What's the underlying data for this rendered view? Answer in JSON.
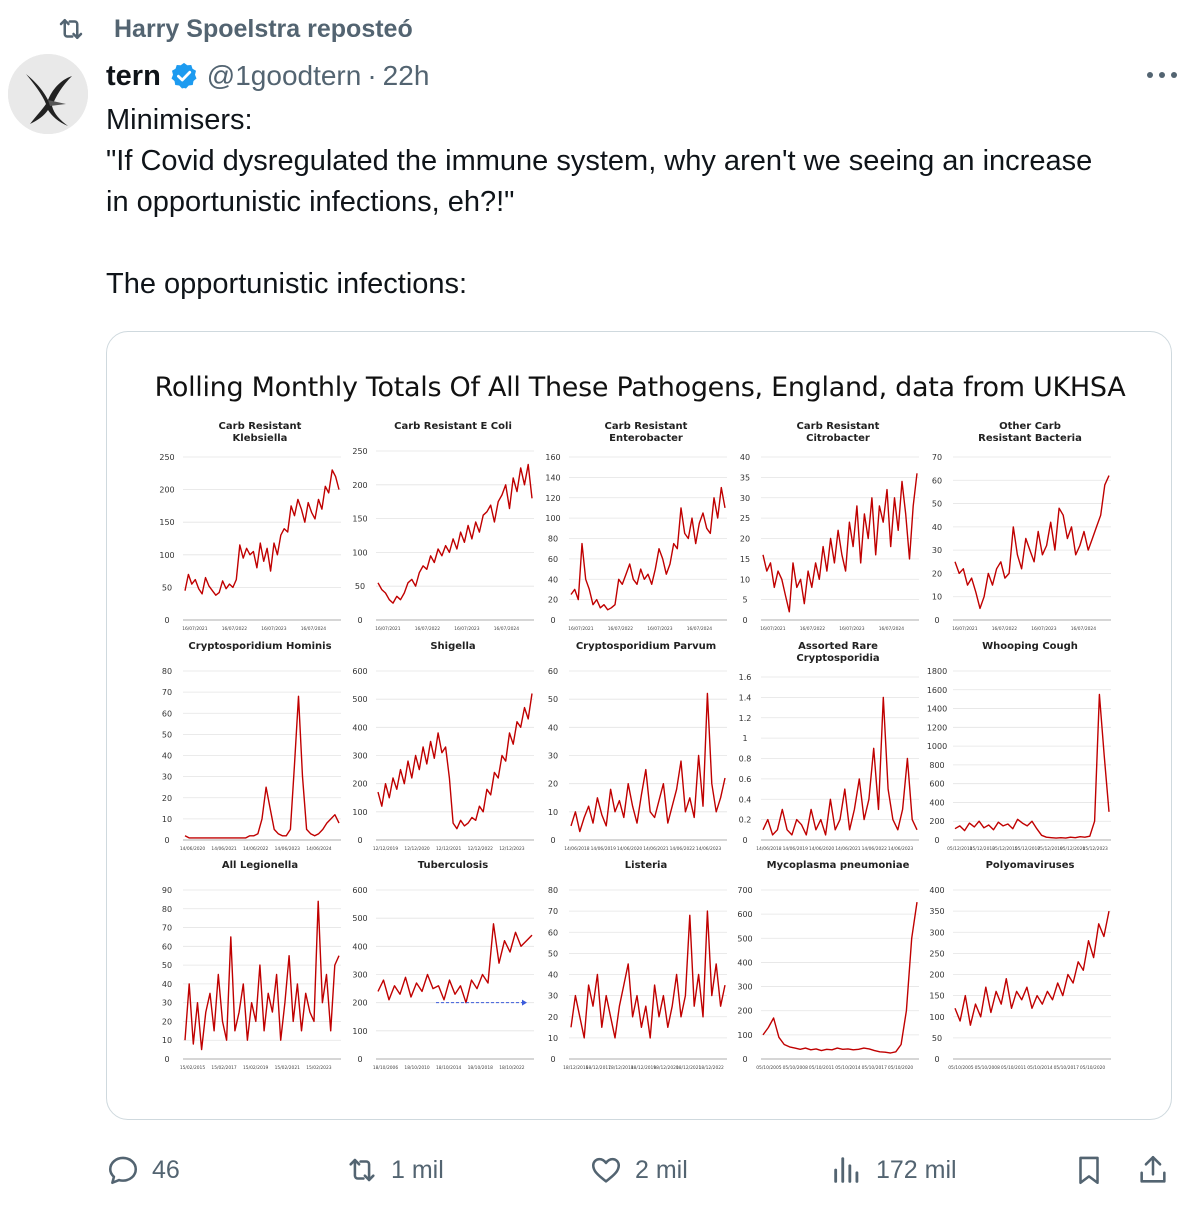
{
  "repost": {
    "text": "Harry Spoelstra reposteó"
  },
  "author": {
    "name": "tern",
    "handle": "@1goodtern",
    "separator": "·",
    "time": "22h"
  },
  "tweet": {
    "lines": [
      "Minimisers:",
      "\"If Covid dysregulated the immune system, why aren't we seeing an increase",
      "in opportunistic infections, eh?!\"",
      "",
      "The opportunistic infections:"
    ]
  },
  "actions": {
    "replies": "46",
    "reposts": "1 mil",
    "likes": "2 mil",
    "views": "172 mil"
  },
  "icons": {
    "repost": "repost-icon",
    "verified": "verified-badge-icon",
    "more": "more-options-icon",
    "reply": "reply-icon",
    "like": "heart-icon",
    "views": "views-icon",
    "bookmark": "bookmark-icon",
    "share": "share-icon"
  },
  "colors": {
    "line": "#c00000",
    "muted": "#536471",
    "verified": "#1d9bf0"
  },
  "chart_data": {
    "title": "Rolling Monthly Totals Of All These Pathogens, England, data from UKHSA",
    "charts": [
      {
        "title": "Carb Resistant Klebsiella",
        "type": "line",
        "ylim": [
          0,
          250
        ],
        "yticks": [
          "0",
          "50",
          "100",
          "150",
          "200",
          "250"
        ],
        "xticks": [
          "16/07/2021",
          "16/07/2022",
          "16/07/2023",
          "16/07/2024"
        ],
        "values": [
          45,
          70,
          55,
          62,
          48,
          40,
          65,
          52,
          45,
          38,
          42,
          60,
          48,
          55,
          50,
          62,
          115,
          95,
          110,
          100,
          105,
          80,
          118,
          90,
          110,
          75,
          118,
          100,
          130,
          140,
          135,
          175,
          160,
          185,
          170,
          150,
          180,
          165,
          155,
          185,
          170,
          205,
          195,
          230,
          220,
          200
        ]
      },
      {
        "title": "Carb Resistant E Coli",
        "type": "line",
        "ylim": [
          0,
          250
        ],
        "yticks": [
          "0",
          "50",
          "100",
          "150",
          "200",
          "250"
        ],
        "xticks": [
          "16/07/2021",
          "16/07/2022",
          "16/07/2023",
          "16/07/2024"
        ],
        "values": [
          55,
          45,
          40,
          30,
          25,
          35,
          30,
          40,
          55,
          60,
          50,
          70,
          80,
          75,
          95,
          85,
          105,
          95,
          110,
          100,
          120,
          105,
          130,
          115,
          140,
          120,
          145,
          130,
          155,
          160,
          170,
          145,
          175,
          185,
          200,
          165,
          210,
          190,
          225,
          200,
          230,
          180
        ]
      },
      {
        "title": "Carb Resistant Enterobacter",
        "type": "line",
        "ylim": [
          0,
          160
        ],
        "yticks": [
          "0",
          "20",
          "40",
          "60",
          "80",
          "100",
          "120",
          "140",
          "160"
        ],
        "xticks": [
          "16/07/2021",
          "16/07/2022",
          "16/07/2023",
          "16/07/2024"
        ],
        "values": [
          25,
          30,
          20,
          75,
          40,
          30,
          15,
          20,
          12,
          15,
          10,
          12,
          15,
          40,
          35,
          45,
          55,
          40,
          35,
          50,
          40,
          45,
          35,
          50,
          70,
          60,
          45,
          55,
          75,
          70,
          110,
          85,
          80,
          100,
          75,
          95,
          105,
          90,
          85,
          120,
          100,
          130,
          110
        ]
      },
      {
        "title": "Carb Resistant Citrobacter",
        "type": "line",
        "ylim": [
          0,
          40
        ],
        "yticks": [
          "0",
          "5",
          "10",
          "15",
          "20",
          "25",
          "30",
          "35",
          "40"
        ],
        "xticks": [
          "16/07/2021",
          "16/07/2022",
          "16/07/2023",
          "16/07/2024"
        ],
        "values": [
          16,
          12,
          14,
          8,
          12,
          10,
          6,
          2,
          14,
          8,
          10,
          4,
          12,
          8,
          14,
          10,
          18,
          12,
          20,
          14,
          22,
          16,
          12,
          24,
          18,
          28,
          14,
          26,
          20,
          30,
          16,
          28,
          24,
          32,
          18,
          30,
          22,
          34,
          26,
          15,
          28,
          36
        ]
      },
      {
        "title": "Other Carb Resistant Bacteria",
        "type": "line",
        "ylim": [
          0,
          70
        ],
        "yticks": [
          "0",
          "10",
          "20",
          "30",
          "40",
          "50",
          "60",
          "70"
        ],
        "xticks": [
          "16/07/2021",
          "16/07/2022",
          "16/07/2023",
          "16/07/2024"
        ],
        "values": [
          25,
          20,
          22,
          15,
          18,
          12,
          5,
          10,
          20,
          15,
          22,
          25,
          18,
          20,
          40,
          28,
          22,
          35,
          30,
          25,
          38,
          28,
          32,
          42,
          30,
          48,
          45,
          35,
          40,
          28,
          32,
          38,
          30,
          35,
          40,
          45,
          58,
          62
        ]
      },
      {
        "title": "Cryptosporidium Hominis",
        "type": "line",
        "ylim": [
          0,
          80
        ],
        "yticks": [
          "0",
          "10",
          "20",
          "30",
          "40",
          "50",
          "60",
          "70",
          "80"
        ],
        "xticks": [
          "14/06/2020",
          "14/06/2021",
          "14/06/2022",
          "14/06/2023",
          "14/06/2024"
        ],
        "values": [
          2,
          1,
          1,
          1,
          1,
          1,
          1,
          1,
          1,
          1,
          1,
          1,
          1,
          1,
          1,
          1,
          2,
          2,
          3,
          10,
          25,
          15,
          5,
          3,
          2,
          2,
          5,
          35,
          68,
          30,
          5,
          3,
          2,
          3,
          5,
          8,
          10,
          12,
          8
        ]
      },
      {
        "title": "Shigella",
        "type": "line",
        "ylim": [
          0,
          600
        ],
        "yticks": [
          "0",
          "100",
          "200",
          "300",
          "400",
          "500",
          "600"
        ],
        "xticks": [
          "12/12/2019",
          "12/12/2020",
          "12/12/2021",
          "12/12/2022",
          "12/12/2023"
        ],
        "values": [
          170,
          120,
          200,
          150,
          220,
          180,
          250,
          200,
          280,
          220,
          300,
          250,
          330,
          270,
          350,
          290,
          380,
          310,
          330,
          220,
          60,
          40,
          70,
          50,
          60,
          80,
          70,
          120,
          100,
          180,
          160,
          240,
          220,
          300,
          280,
          380,
          340,
          420,
          400,
          470,
          430,
          520
        ]
      },
      {
        "title": "Cryptosporidium Parvum",
        "type": "line",
        "ylim": [
          0,
          60
        ],
        "yticks": [
          "0",
          "10",
          "20",
          "30",
          "40",
          "50",
          "60"
        ],
        "xticks": [
          "14/06/2018",
          "14/06/2019",
          "14/06/2020",
          "14/06/2021",
          "14/06/2022",
          "14/06/2023"
        ],
        "values": [
          5,
          10,
          3,
          8,
          12,
          6,
          15,
          9,
          5,
          18,
          10,
          14,
          8,
          20,
          12,
          6,
          16,
          25,
          10,
          8,
          14,
          20,
          6,
          12,
          18,
          28,
          10,
          15,
          8,
          30,
          12,
          52,
          20,
          10,
          15,
          22
        ]
      },
      {
        "title": "Assorted Rare Cryptosporidia",
        "type": "line",
        "ylim": [
          0,
          1.6
        ],
        "yticks": [
          "0",
          "0.2",
          "0.4",
          "0.6",
          "0.8",
          "1",
          "1.2",
          "1.4",
          "1.6"
        ],
        "xticks": [
          "14/06/2018",
          "14/06/2019",
          "14/06/2020",
          "14/06/2021",
          "14/06/2022",
          "14/06/2023"
        ],
        "values": [
          0.1,
          0.2,
          0.05,
          0.1,
          0.3,
          0.1,
          0.05,
          0.2,
          0.15,
          0.05,
          0.3,
          0.1,
          0.2,
          0.05,
          0.4,
          0.1,
          0.2,
          0.5,
          0.1,
          0.3,
          0.6,
          0.2,
          0.4,
          0.9,
          0.3,
          1.4,
          0.5,
          0.2,
          0.1,
          0.3,
          0.8,
          0.2,
          0.1
        ]
      },
      {
        "title": "Whooping Cough",
        "type": "line",
        "ylim": [
          0,
          1800
        ],
        "yticks": [
          "0",
          "200",
          "400",
          "600",
          "800",
          "1000",
          "1200",
          "1400",
          "1600",
          "1800"
        ],
        "xticks": [
          "05/12/2011",
          "05/12/2013",
          "05/12/2015",
          "05/12/2017",
          "05/12/2019",
          "05/12/2021",
          "05/12/2023"
        ],
        "values": [
          120,
          150,
          100,
          180,
          140,
          200,
          130,
          160,
          110,
          190,
          150,
          170,
          120,
          220,
          180,
          150,
          200,
          120,
          50,
          30,
          25,
          20,
          25,
          20,
          30,
          25,
          35,
          30,
          40,
          200,
          1550,
          900,
          300
        ]
      },
      {
        "title": "All Legionella",
        "type": "line",
        "ylim": [
          0,
          90
        ],
        "yticks": [
          "0",
          "10",
          "20",
          "30",
          "40",
          "50",
          "60",
          "70",
          "80",
          "90"
        ],
        "xticks": [
          "15/02/2015",
          "15/02/2017",
          "15/02/2019",
          "15/02/2021",
          "15/02/2023"
        ],
        "values": [
          10,
          40,
          8,
          30,
          5,
          25,
          35,
          15,
          45,
          20,
          10,
          65,
          15,
          25,
          40,
          10,
          30,
          20,
          50,
          15,
          35,
          25,
          45,
          10,
          30,
          55,
          20,
          40,
          15,
          35,
          25,
          20,
          84,
          30,
          45,
          15,
          50,
          55
        ]
      },
      {
        "title": "Tuberculosis",
        "type": "line",
        "ylim": [
          0,
          600
        ],
        "yticks": [
          "0",
          "100",
          "200",
          "300",
          "400",
          "500",
          "600"
        ],
        "xticks": [
          "18/10/2006",
          "18/10/2010",
          "18/10/2014",
          "18/10/2018",
          "18/10/2022"
        ],
        "values": [
          240,
          280,
          210,
          260,
          230,
          290,
          220,
          270,
          240,
          300,
          250,
          260,
          210,
          280,
          230,
          260,
          200,
          280,
          250,
          300,
          270,
          480,
          340,
          420,
          380,
          450,
          400,
          420,
          440
        ]
      },
      {
        "title": "Listeria",
        "type": "line",
        "ylim": [
          0,
          80
        ],
        "yticks": [
          "0",
          "10",
          "20",
          "30",
          "40",
          "50",
          "60",
          "70",
          "80"
        ],
        "xticks": [
          "18/12/2016",
          "18/12/2017",
          "18/12/2018",
          "18/12/2019",
          "18/12/2020",
          "18/12/2021",
          "18/12/2022"
        ],
        "values": [
          15,
          30,
          20,
          10,
          35,
          25,
          40,
          15,
          30,
          20,
          10,
          25,
          35,
          45,
          20,
          30,
          15,
          25,
          10,
          35,
          20,
          30,
          15,
          25,
          40,
          20,
          30,
          68,
          25,
          40,
          20,
          70,
          30,
          45,
          25,
          35
        ]
      },
      {
        "title": "Mycoplasma pneumoniae",
        "type": "line",
        "ylim": [
          0,
          700
        ],
        "yticks": [
          "0",
          "100",
          "200",
          "300",
          "400",
          "500",
          "600",
          "700"
        ],
        "xticks": [
          "05/10/2005",
          "05/10/2008",
          "05/10/2011",
          "05/10/2014",
          "05/10/2017",
          "05/10/2020"
        ],
        "values": [
          100,
          130,
          170,
          90,
          60,
          50,
          45,
          40,
          45,
          38,
          42,
          35,
          40,
          38,
          45,
          40,
          42,
          38,
          40,
          45,
          42,
          35,
          30,
          28,
          25,
          30,
          60,
          200,
          500,
          650
        ]
      },
      {
        "title": "Polyomaviruses",
        "type": "line",
        "ylim": [
          0,
          400
        ],
        "yticks": [
          "0",
          "50",
          "100",
          "150",
          "200",
          "250",
          "300",
          "350",
          "400"
        ],
        "xticks": [
          "05/10/2005",
          "05/10/2008",
          "05/10/2011",
          "05/10/2014",
          "05/10/2017",
          "05/10/2020"
        ],
        "values": [
          120,
          90,
          150,
          80,
          130,
          100,
          170,
          110,
          160,
          130,
          190,
          120,
          160,
          140,
          170,
          120,
          150,
          130,
          160,
          140,
          180,
          150,
          200,
          180,
          230,
          210,
          280,
          240,
          320,
          290,
          350
        ]
      }
    ]
  }
}
